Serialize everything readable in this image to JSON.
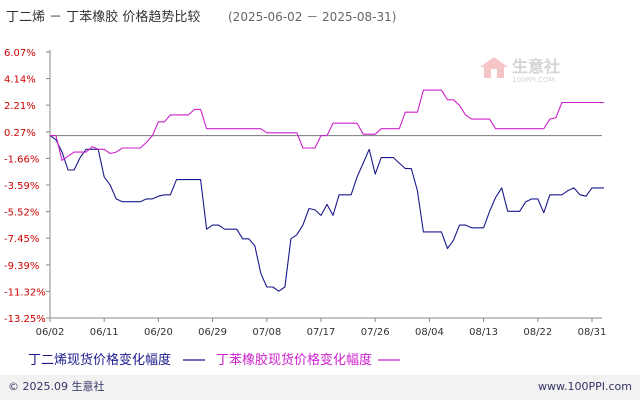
{
  "chart_data": {
    "type": "line",
    "title": "丁二烯 － 丁苯橡胶 价格趋势比较",
    "date_range": "(2025-06-02 － 2025-08-31)",
    "y_ticks": [
      "6.07%",
      "4.14%",
      "2.21%",
      "0.27%",
      "-1.66%",
      "-3.59%",
      "-5.52%",
      "-7.45%",
      "-9.39%",
      "-11.32%",
      "-13.25%"
    ],
    "x_ticks": [
      "06/02",
      "06/11",
      "06/20",
      "06/29",
      "07/08",
      "07/17",
      "07/26",
      "08/04",
      "08/13",
      "08/22",
      "08/31"
    ],
    "ylim": [
      -13.25,
      6.07
    ],
    "x_range": [
      0,
      90
    ],
    "series": [
      {
        "name": "丁二烯现货价格变化幅度",
        "color": "#1a1a8c",
        "points": [
          [
            0,
            0
          ],
          [
            1,
            -0.3
          ],
          [
            2,
            -1.2
          ],
          [
            3,
            -2.5
          ],
          [
            4,
            -2.5
          ],
          [
            5,
            -1.6
          ],
          [
            6,
            -1.0
          ],
          [
            7,
            -1.0
          ],
          [
            8,
            -1.0
          ],
          [
            9,
            -3.0
          ],
          [
            10,
            -3.6
          ],
          [
            11,
            -4.6
          ],
          [
            12,
            -4.8
          ],
          [
            13,
            -4.8
          ],
          [
            14,
            -4.8
          ],
          [
            15,
            -4.8
          ],
          [
            16,
            -4.6
          ],
          [
            17,
            -4.6
          ],
          [
            18,
            -4.4
          ],
          [
            19,
            -4.3
          ],
          [
            20,
            -4.3
          ],
          [
            21,
            -3.2
          ],
          [
            22,
            -3.2
          ],
          [
            23,
            -3.2
          ],
          [
            24,
            -3.2
          ],
          [
            25,
            -3.2
          ],
          [
            26,
            -6.8
          ],
          [
            27,
            -6.5
          ],
          [
            28,
            -6.5
          ],
          [
            29,
            -6.8
          ],
          [
            30,
            -6.8
          ],
          [
            31,
            -6.8
          ],
          [
            32,
            -7.5
          ],
          [
            33,
            -7.5
          ],
          [
            34,
            -8.0
          ],
          [
            35,
            -10.0
          ],
          [
            36,
            -11.0
          ],
          [
            37,
            -11.0
          ],
          [
            38,
            -11.3
          ],
          [
            39,
            -11.0
          ],
          [
            40,
            -7.5
          ],
          [
            41,
            -7.2
          ],
          [
            42,
            -6.5
          ],
          [
            43,
            -5.3
          ],
          [
            44,
            -5.4
          ],
          [
            45,
            -5.8
          ],
          [
            46,
            -5.0
          ],
          [
            47,
            -5.8
          ],
          [
            48,
            -4.3
          ],
          [
            49,
            -4.3
          ],
          [
            50,
            -4.3
          ],
          [
            51,
            -3.0
          ],
          [
            52,
            -2.0
          ],
          [
            53,
            -1.0
          ],
          [
            54,
            -2.8
          ],
          [
            55,
            -1.6
          ],
          [
            56,
            -1.6
          ],
          [
            57,
            -1.6
          ],
          [
            58,
            -2.0
          ],
          [
            59,
            -2.4
          ],
          [
            60,
            -2.4
          ],
          [
            61,
            -4.0
          ],
          [
            62,
            -7.0
          ],
          [
            63,
            -7.0
          ],
          [
            64,
            -7.0
          ],
          [
            65,
            -7.0
          ],
          [
            66,
            -8.2
          ],
          [
            67,
            -7.6
          ],
          [
            68,
            -6.5
          ],
          [
            69,
            -6.5
          ],
          [
            70,
            -6.7
          ],
          [
            71,
            -6.7
          ],
          [
            72,
            -6.7
          ],
          [
            73,
            -5.5
          ],
          [
            74,
            -4.5
          ],
          [
            75,
            -3.8
          ],
          [
            76,
            -5.5
          ],
          [
            77,
            -5.5
          ],
          [
            78,
            -5.5
          ],
          [
            79,
            -4.8
          ],
          [
            80,
            -4.6
          ],
          [
            81,
            -4.6
          ],
          [
            82,
            -5.6
          ],
          [
            83,
            -4.3
          ],
          [
            84,
            -4.3
          ],
          [
            85,
            -4.3
          ],
          [
            86,
            -4.0
          ],
          [
            87,
            -3.8
          ],
          [
            88,
            -4.3
          ],
          [
            89,
            -4.4
          ],
          [
            90,
            -3.8
          ],
          [
            92,
            -3.8
          ]
        ]
      },
      {
        "name": "丁苯橡胶现货价格变化幅度",
        "color": "#cc22cc",
        "points": [
          [
            0,
            0
          ],
          [
            1,
            0
          ],
          [
            2,
            -1.8
          ],
          [
            3,
            -1.5
          ],
          [
            4,
            -1.2
          ],
          [
            5,
            -1.2
          ],
          [
            6,
            -1.2
          ],
          [
            7,
            -0.8
          ],
          [
            8,
            -1.0
          ],
          [
            9,
            -1.0
          ],
          [
            10,
            -1.3
          ],
          [
            11,
            -1.2
          ],
          [
            12,
            -0.9
          ],
          [
            13,
            -0.9
          ],
          [
            14,
            -0.9
          ],
          [
            15,
            -0.9
          ],
          [
            16,
            -0.5
          ],
          [
            17,
            0
          ],
          [
            18,
            1.0
          ],
          [
            19,
            1.0
          ],
          [
            20,
            1.5
          ],
          [
            21,
            1.5
          ],
          [
            22,
            1.5
          ],
          [
            23,
            1.5
          ],
          [
            24,
            1.9
          ],
          [
            25,
            1.9
          ],
          [
            26,
            0.5
          ],
          [
            27,
            0.5
          ],
          [
            28,
            0.5
          ],
          [
            29,
            0.5
          ],
          [
            30,
            0.5
          ],
          [
            31,
            0.5
          ],
          [
            32,
            0.5
          ],
          [
            33,
            0.5
          ],
          [
            34,
            0.5
          ],
          [
            35,
            0.5
          ],
          [
            36,
            0.2
          ],
          [
            37,
            0.2
          ],
          [
            38,
            0.2
          ],
          [
            39,
            0.2
          ],
          [
            40,
            0.2
          ],
          [
            41,
            0.2
          ],
          [
            42,
            -0.9
          ],
          [
            43,
            -0.9
          ],
          [
            44,
            -0.9
          ],
          [
            45,
            0
          ],
          [
            46,
            0
          ],
          [
            47,
            0.9
          ],
          [
            48,
            0.9
          ],
          [
            49,
            0.9
          ],
          [
            50,
            0.9
          ],
          [
            51,
            0.9
          ],
          [
            52,
            0.1
          ],
          [
            53,
            0.1
          ],
          [
            54,
            0.1
          ],
          [
            55,
            0.5
          ],
          [
            56,
            0.5
          ],
          [
            57,
            0.5
          ],
          [
            58,
            0.5
          ],
          [
            59,
            1.7
          ],
          [
            60,
            1.7
          ],
          [
            61,
            1.7
          ],
          [
            62,
            3.3
          ],
          [
            63,
            3.3
          ],
          [
            64,
            3.3
          ],
          [
            65,
            3.3
          ],
          [
            66,
            2.6
          ],
          [
            67,
            2.6
          ],
          [
            68,
            2.2
          ],
          [
            69,
            1.5
          ],
          [
            70,
            1.2
          ],
          [
            71,
            1.2
          ],
          [
            72,
            1.2
          ],
          [
            73,
            1.2
          ],
          [
            74,
            0.5
          ],
          [
            75,
            0.5
          ],
          [
            76,
            0.5
          ],
          [
            77,
            0.5
          ],
          [
            78,
            0.5
          ],
          [
            79,
            0.5
          ],
          [
            80,
            0.5
          ],
          [
            81,
            0.5
          ],
          [
            82,
            0.5
          ],
          [
            83,
            1.2
          ],
          [
            84,
            1.3
          ],
          [
            85,
            2.4
          ],
          [
            86,
            2.4
          ],
          [
            87,
            2.4
          ],
          [
            88,
            2.4
          ],
          [
            89,
            2.4
          ],
          [
            90,
            2.4
          ],
          [
            91,
            2.4
          ],
          [
            92,
            2.4
          ]
        ]
      }
    ],
    "legend": "bottom",
    "grid": false
  },
  "watermark": {
    "text": "生意社",
    "url": "100PPI.COM"
  },
  "footer": {
    "copyright": "© 2025.09 生意社",
    "website": "www.100PPI.com"
  }
}
